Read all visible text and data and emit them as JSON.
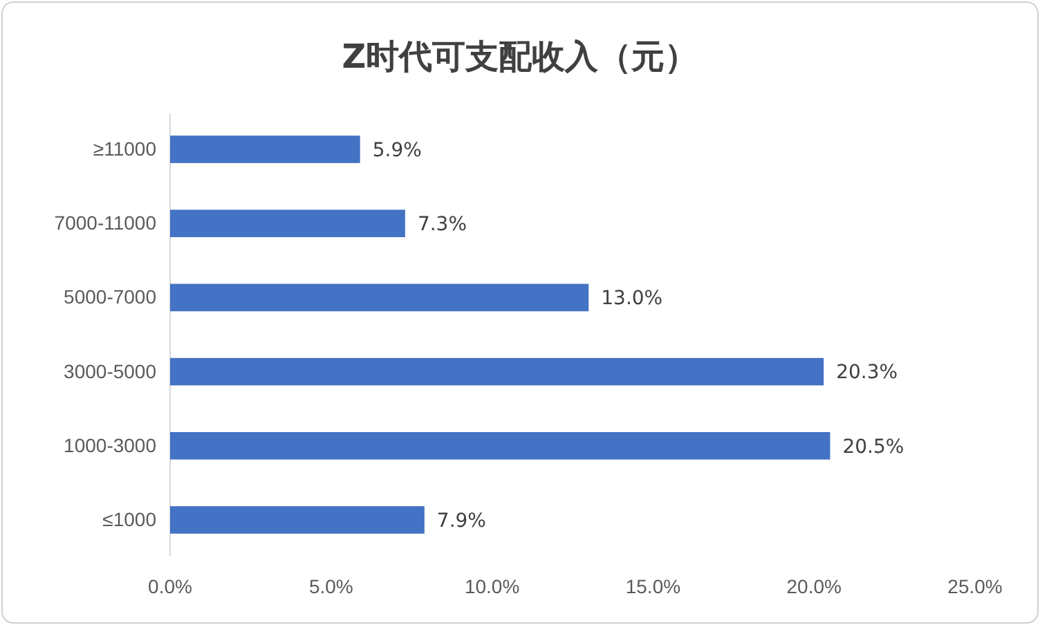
{
  "chart_data": {
    "type": "bar",
    "orientation": "horizontal",
    "title": "Z时代可支配收入（元）",
    "categories": [
      "≥11000",
      "7000-11000",
      "5000-7000",
      "3000-5000",
      "1000-3000",
      "≤1000"
    ],
    "values": [
      5.9,
      7.3,
      13.0,
      20.3,
      20.5,
      7.9
    ],
    "value_labels": [
      "5.9%",
      "7.3%",
      "13.0%",
      "20.3%",
      "20.5%",
      "7.9%"
    ],
    "color": "#4472c4",
    "xlim": [
      0,
      25
    ],
    "xticks": [
      {
        "value": 0,
        "label": "0.0%"
      },
      {
        "value": 5,
        "label": "5.0%"
      },
      {
        "value": 10,
        "label": "10.0%"
      },
      {
        "value": 15,
        "label": "15.0%"
      },
      {
        "value": 20,
        "label": "20.0%"
      },
      {
        "value": 25,
        "label": "25.0%"
      }
    ],
    "grid": false
  }
}
